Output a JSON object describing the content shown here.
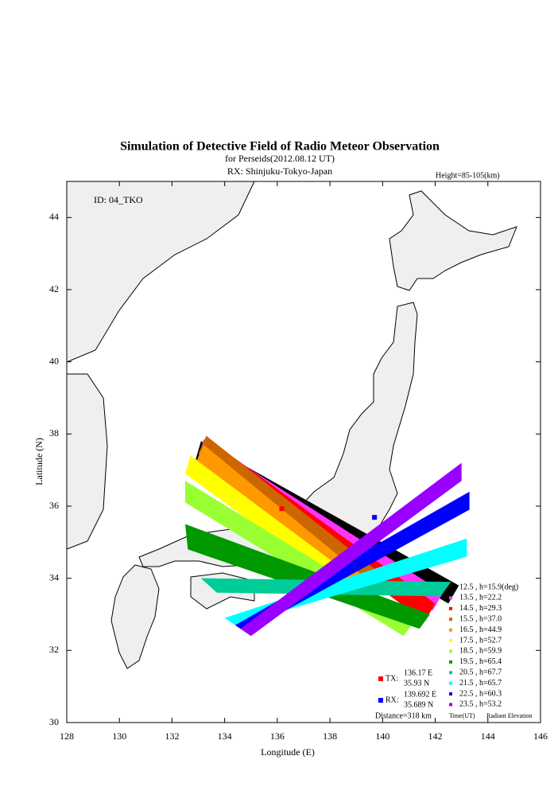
{
  "chart_data": {
    "type": "map",
    "title": "Simulation of Detective Field of Radio Meteor Observation",
    "subtitle": "for Perseids(2012.08.12 UT)",
    "receiver_label": "RX: Shinjuku-Tokyo-Japan",
    "height_label": "Height=85-105(km)",
    "id_label": "ID: 04_TKO",
    "xlabel": "Longitude (E)",
    "ylabel": "Latitude (N)",
    "xlim": [
      128,
      146
    ],
    "ylim": [
      30,
      45
    ],
    "xticks": [
      128,
      130,
      132,
      134,
      136,
      138,
      140,
      142,
      144,
      146
    ],
    "yticks": [
      30,
      32,
      34,
      36,
      38,
      40,
      42,
      44
    ],
    "legend_time_label": "Time(UT)",
    "legend_elevation_label": "Radiant Elevation",
    "tx": {
      "marker": "TX:",
      "lon": 136.17,
      "lat": 35.93,
      "lon_label": "136.17 E",
      "lat_label": "35.93 N",
      "color": "#ff0000"
    },
    "rx": {
      "marker": "RX:",
      "lon": 139.692,
      "lat": 35.689,
      "lon_label": "139.692 E",
      "lat_label": "35.689 N",
      "color": "#0000ff"
    },
    "distance_label": "Distance=318 km",
    "series": [
      {
        "name": "12.5 ,  h=15.9(deg)",
        "color": "#000000",
        "lon": [
          133.1,
          142.9,
          142.5,
          132.9
        ],
        "lat": [
          37.8,
          33.8,
          33.3,
          37.3
        ]
      },
      {
        "name": "13.5 ,  h=22.2",
        "color": "#ff33ff",
        "lon": [
          133.2,
          142.3,
          141.9,
          133.0
        ],
        "lat": [
          37.85,
          33.6,
          33.1,
          37.35
        ]
      },
      {
        "name": "14.5 ,  h=29.3",
        "color": "#ff0000",
        "lon": [
          133.3,
          142.0,
          141.6,
          133.1
        ],
        "lat": [
          37.9,
          33.3,
          32.8,
          37.4
        ]
      },
      {
        "name": "15.5 ,  h=37.0",
        "color": "#cc6600",
        "lon": [
          133.3,
          139.8,
          139.4,
          133.0
        ],
        "lat": [
          37.95,
          34.2,
          33.8,
          37.45
        ]
      },
      {
        "name": "16.5 ,  h=44.9",
        "color": "#ff9900",
        "lon": [
          133.2,
          139.2,
          138.8,
          132.9
        ],
        "lat": [
          37.7,
          34.1,
          33.7,
          37.2
        ]
      },
      {
        "name": "17.5 ,  h=52.7",
        "color": "#ffff00",
        "lon": [
          132.7,
          138.4,
          138.1,
          132.5
        ],
        "lat": [
          37.4,
          34.3,
          33.9,
          36.9
        ]
      },
      {
        "name": "18.5 ,  h=59.9",
        "color": "#99ff33",
        "lon": [
          132.5,
          141.2,
          140.8,
          132.5
        ],
        "lat": [
          36.7,
          32.8,
          32.4,
          36.1
        ]
      },
      {
        "name": "19.5 ,  h=65.4",
        "color": "#009900",
        "lon": [
          132.5,
          141.8,
          141.4,
          132.6
        ],
        "lat": [
          35.5,
          33.0,
          32.6,
          34.8
        ]
      },
      {
        "name": "20.5 ,  h=67.7",
        "color": "#00cc99",
        "lon": [
          133.1,
          142.6,
          142.2,
          133.7
        ],
        "lat": [
          34.0,
          33.9,
          33.5,
          33.6
        ]
      },
      {
        "name": "21.5 ,  h=65.7",
        "color": "#00ffff",
        "lon": [
          134.0,
          143.2,
          143.2,
          134.4
        ],
        "lat": [
          32.9,
          35.1,
          34.6,
          32.7
        ]
      },
      {
        "name": "22.5 ,  h=60.3",
        "color": "#0000ff",
        "lon": [
          134.4,
          143.3,
          143.3,
          134.8
        ],
        "lat": [
          32.7,
          36.4,
          35.9,
          32.5
        ]
      },
      {
        "name": "23.5 ,  h=53.2",
        "color": "#9900ff",
        "lon": [
          134.6,
          143.0,
          143.0,
          135.0
        ],
        "lat": [
          32.6,
          37.2,
          36.7,
          32.4
        ]
      }
    ]
  }
}
